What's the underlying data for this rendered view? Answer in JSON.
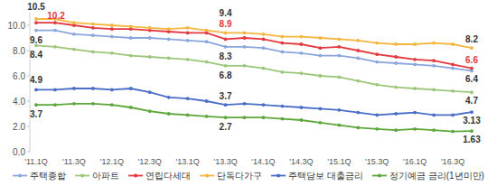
{
  "chart_data": {
    "type": "line",
    "categories": [
      "'11.1Q",
      null,
      "'11.3Q",
      null,
      "'12.1Q",
      null,
      "'12.3Q",
      null,
      "'13.1Q",
      null,
      "'13.3Q",
      null,
      "'14.1Q",
      null,
      "'14.3Q",
      null,
      "'15.1Q",
      null,
      "'15.3Q",
      null,
      "'16.1Q",
      null,
      "'16.3Q",
      null
    ],
    "series": [
      {
        "name": "주택종합",
        "color": "#8aa6dc",
        "values": [
          9.6,
          9.6,
          9.3,
          9.2,
          9.1,
          9.0,
          9.0,
          8.9,
          8.8,
          8.7,
          8.3,
          8.3,
          8.2,
          7.9,
          7.8,
          7.6,
          7.6,
          7.4,
          7.1,
          7.0,
          6.9,
          6.8,
          6.6,
          6.4
        ],
        "value_labels": [
          "9.6",
          null,
          null,
          null,
          null,
          null,
          null,
          null,
          null,
          null,
          "8.3",
          null,
          null,
          null,
          null,
          null,
          null,
          null,
          null,
          null,
          null,
          null,
          null,
          "6.4"
        ]
      },
      {
        "name": "아파트",
        "color": "#9cc77a",
        "values": [
          8.4,
          8.3,
          8.1,
          7.9,
          7.8,
          7.6,
          7.5,
          7.4,
          7.3,
          7.1,
          6.8,
          6.8,
          6.6,
          6.3,
          6.2,
          6.0,
          5.9,
          5.6,
          5.3,
          5.1,
          5.0,
          4.9,
          4.8,
          4.7
        ],
        "value_labels": [
          "8.4",
          null,
          null,
          null,
          null,
          null,
          null,
          null,
          null,
          null,
          "6.8",
          null,
          null,
          null,
          null,
          null,
          null,
          null,
          null,
          null,
          null,
          null,
          null,
          "4.7"
        ]
      },
      {
        "name": "연립다세대",
        "color": "#e3383f",
        "values": [
          10.2,
          10.2,
          10.0,
          9.8,
          9.7,
          9.7,
          9.6,
          9.5,
          9.4,
          9.4,
          8.9,
          9.0,
          8.9,
          8.6,
          8.5,
          8.2,
          8.3,
          8.0,
          7.7,
          7.5,
          7.3,
          7.2,
          6.9,
          6.6
        ],
        "value_labels": [
          "10.2",
          null,
          null,
          null,
          null,
          null,
          null,
          null,
          null,
          null,
          "8.9",
          null,
          null,
          null,
          null,
          null,
          null,
          null,
          null,
          null,
          null,
          null,
          null,
          "6.6"
        ]
      },
      {
        "name": "단독다가구",
        "color": "#f4b63f",
        "values": [
          10.5,
          10.5,
          10.2,
          10.1,
          10.0,
          9.9,
          9.8,
          9.7,
          9.8,
          9.6,
          9.4,
          9.4,
          9.3,
          9.1,
          9.1,
          9.0,
          8.9,
          8.8,
          8.6,
          8.5,
          8.5,
          8.6,
          8.5,
          8.2
        ],
        "value_labels": [
          "10.5",
          null,
          null,
          null,
          null,
          null,
          null,
          null,
          null,
          null,
          "9.4",
          null,
          null,
          null,
          null,
          null,
          null,
          null,
          null,
          null,
          null,
          null,
          null,
          "8.2"
        ]
      },
      {
        "name": "주택담보 대출금리",
        "color": "#4a6ec6",
        "values": [
          4.9,
          4.9,
          5.0,
          5.0,
          4.9,
          5.0,
          4.7,
          4.3,
          4.2,
          4.0,
          3.7,
          3.8,
          3.7,
          3.6,
          3.5,
          3.4,
          3.3,
          3.1,
          2.9,
          3.0,
          3.1,
          2.9,
          2.9,
          3.13
        ],
        "value_labels": [
          "4.9",
          null,
          null,
          null,
          null,
          null,
          null,
          null,
          null,
          null,
          "3.7",
          null,
          null,
          null,
          null,
          null,
          null,
          null,
          null,
          null,
          null,
          null,
          null,
          "3.13"
        ]
      },
      {
        "name": "정기예금 금리(1년미만)",
        "color": "#5da63a",
        "values": [
          3.7,
          3.7,
          3.8,
          3.8,
          3.7,
          3.5,
          3.2,
          3.0,
          2.9,
          2.8,
          2.7,
          2.7,
          2.7,
          2.6,
          2.5,
          2.3,
          2.1,
          1.9,
          1.8,
          1.7,
          1.8,
          1.7,
          1.6,
          1.63
        ],
        "value_labels": [
          "3.7",
          null,
          null,
          null,
          null,
          null,
          null,
          null,
          null,
          null,
          "2.7",
          null,
          null,
          null,
          null,
          null,
          null,
          null,
          null,
          null,
          null,
          null,
          null,
          "1.63"
        ]
      }
    ],
    "ylim": [
      0,
      11
    ],
    "yticks": [
      {
        "value": 0,
        "label": "0.0"
      },
      {
        "value": 2,
        "label": "2.0"
      },
      {
        "value": 4,
        "label": "4.0"
      },
      {
        "value": 6,
        "label": "6.0"
      },
      {
        "value": 8,
        "label": "8.0"
      },
      {
        "value": 10,
        "label": "10.0"
      }
    ],
    "grid": false,
    "legend": "bottom",
    "marker": "circle",
    "line_style": "solid"
  }
}
